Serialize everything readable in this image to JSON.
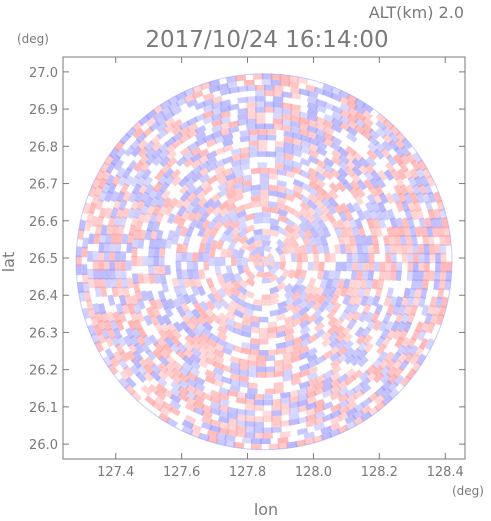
{
  "chart_data": {
    "type": "heatmap",
    "title": "2017/10/24 16:14:00",
    "subtitle": "ALT(km) 2.0",
    "xlabel": "lon",
    "ylabel": "lat",
    "x_unit": "(deg)",
    "y_unit": "(deg)",
    "xlim": [
      127.24,
      128.46
    ],
    "ylim": [
      25.96,
      27.04
    ],
    "x_ticks": [
      127.4,
      127.6,
      127.8,
      128.0,
      128.2,
      128.4
    ],
    "x_tick_labels": [
      "127.4",
      "127.6",
      "127.8",
      "128.0",
      "128.2",
      "128.4"
    ],
    "y_ticks": [
      26.0,
      26.1,
      26.2,
      26.3,
      26.4,
      26.5,
      26.6,
      26.7,
      26.8,
      26.9,
      27.0
    ],
    "y_tick_labels": [
      "26.0",
      "26.1",
      "26.2",
      "26.3",
      "26.4",
      "26.5",
      "26.6",
      "26.7",
      "26.8",
      "26.9",
      "27.0"
    ],
    "radar_center": {
      "lon": 127.85,
      "lat": 26.49
    },
    "radar_radius_deg_lat": 0.505,
    "grid": false,
    "colors": {
      "positive": "#ff9a9a",
      "negative": "#9a9aff",
      "neutral": "#ffffff",
      "axis": "#7a7a7a"
    }
  }
}
